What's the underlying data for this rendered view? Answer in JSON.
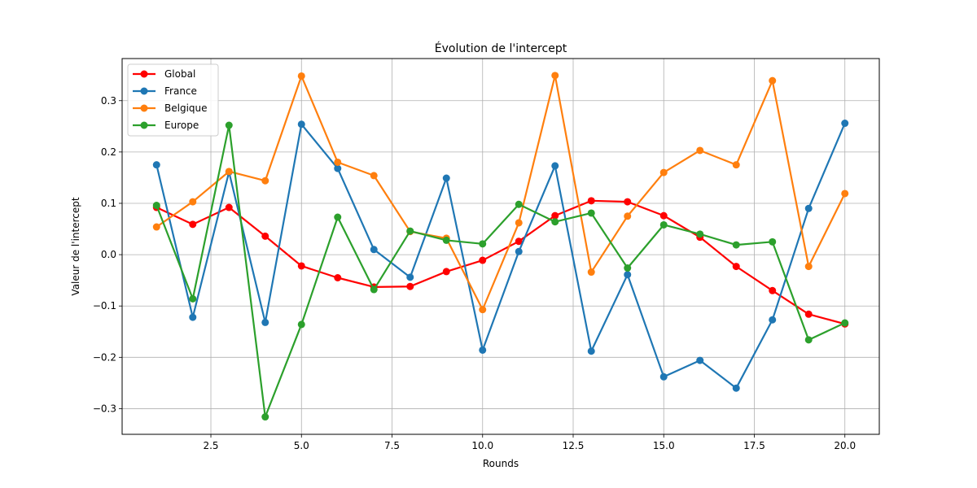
{
  "chart_data": {
    "type": "line",
    "title": "Évolution de l'intercept",
    "xlabel": "Rounds",
    "ylabel": "Valeur de l'intercept",
    "x": [
      1,
      2,
      3,
      4,
      5,
      6,
      7,
      8,
      9,
      10,
      11,
      12,
      13,
      14,
      15,
      16,
      17,
      18,
      19,
      20
    ],
    "xlim": [
      0.05,
      20.95
    ],
    "ylim": [
      -0.35,
      0.382
    ],
    "xticks": [
      2.5,
      5.0,
      7.5,
      10.0,
      12.5,
      15.0,
      17.5,
      20.0
    ],
    "xtick_labels": [
      "2.5",
      "5.0",
      "7.5",
      "10.0",
      "12.5",
      "15.0",
      "17.5",
      "20.0"
    ],
    "yticks": [
      -0.3,
      -0.2,
      -0.1,
      0.0,
      0.1,
      0.2,
      0.3
    ],
    "ytick_labels": [
      "−0.3",
      "−0.2",
      "−0.1",
      "0.0",
      "0.1",
      "0.2",
      "0.3"
    ],
    "grid": true,
    "legend_position": "top-left",
    "series": [
      {
        "name": "Global",
        "color": "#ff0000",
        "values": [
          0.092,
          0.059,
          0.092,
          0.036,
          -0.022,
          -0.045,
          -0.063,
          -0.062,
          -0.033,
          -0.011,
          0.026,
          0.076,
          0.105,
          0.103,
          0.076,
          0.034,
          -0.023,
          -0.07,
          -0.116,
          -0.135
        ]
      },
      {
        "name": "France",
        "color": "#1f77b4",
        "values": [
          0.175,
          -0.122,
          0.161,
          -0.132,
          0.254,
          0.168,
          0.01,
          -0.044,
          0.149,
          -0.186,
          0.006,
          0.173,
          -0.188,
          -0.039,
          -0.238,
          -0.206,
          -0.26,
          -0.127,
          0.09,
          0.256
        ]
      },
      {
        "name": "Belgique",
        "color": "#ff7f0e",
        "values": [
          0.054,
          0.103,
          0.162,
          0.144,
          0.348,
          0.18,
          0.154,
          0.045,
          0.032,
          -0.107,
          0.062,
          0.349,
          -0.034,
          0.075,
          0.16,
          0.203,
          0.175,
          0.339,
          -0.023,
          0.119
        ]
      },
      {
        "name": "Europe",
        "color": "#2ca02c",
        "values": [
          0.096,
          -0.086,
          0.252,
          -0.316,
          -0.136,
          0.073,
          -0.068,
          0.046,
          0.028,
          0.021,
          0.098,
          0.064,
          0.081,
          -0.026,
          0.058,
          0.04,
          0.019,
          0.025,
          -0.166,
          -0.133
        ]
      }
    ]
  }
}
